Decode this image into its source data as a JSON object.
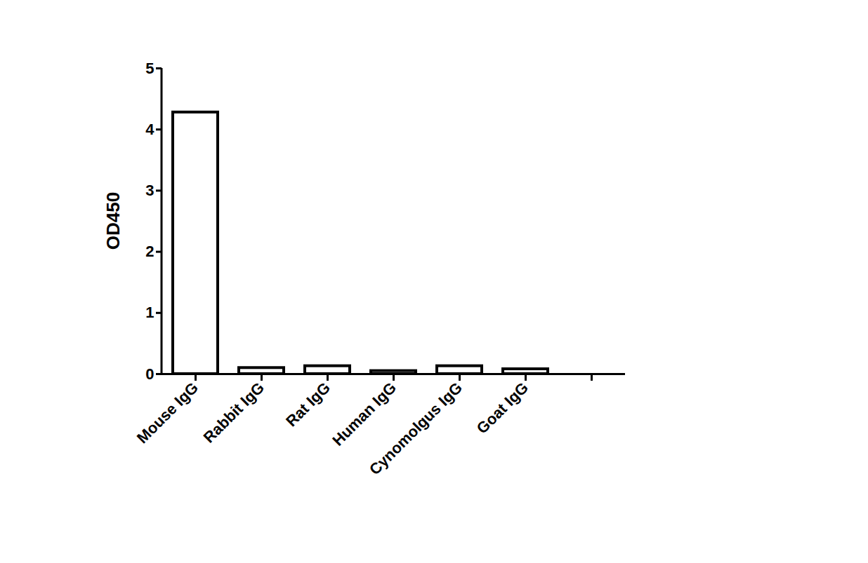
{
  "chart_data": {
    "type": "bar",
    "y_label": "OD450",
    "categories": [
      "Mouse IgG",
      "Rabbit IgG",
      "Rat IgG",
      "Human IgG",
      "Cynomolgus IgG",
      "Goat IgG",
      null
    ],
    "values": [
      4.28,
      0.1,
      0.13,
      0.05,
      0.13,
      0.08,
      null
    ],
    "color": "#000000",
    "ylim": [
      0,
      5
    ],
    "yticks": [
      0,
      1,
      2,
      3,
      4,
      5
    ],
    "grid": false
  }
}
